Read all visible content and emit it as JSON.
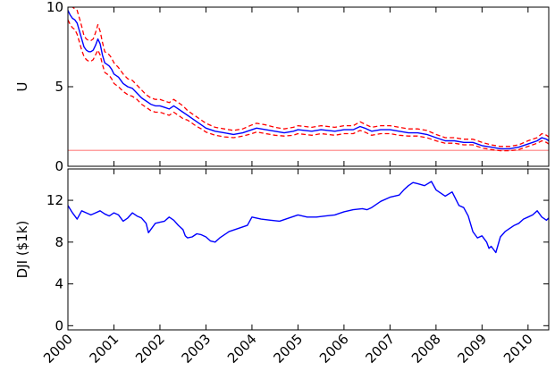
{
  "chart_data": [
    {
      "type": "line",
      "ylabel": "U",
      "ylim": [
        0,
        10
      ],
      "yticks": [
        "0",
        "5",
        "10"
      ],
      "xlim": [
        2000.0,
        2010.45
      ],
      "grid": false,
      "reference_line": {
        "y": 1.0,
        "color": "#ff8080"
      },
      "colors": {
        "estimate": "#0000ff",
        "band": "#ff0000"
      },
      "series": [
        {
          "role": "estimate",
          "style": "solid",
          "x": [
            2000.0,
            2000.05,
            2000.1,
            2000.15,
            2000.2,
            2000.25,
            2000.3,
            2000.35,
            2000.4,
            2000.45,
            2000.5,
            2000.55,
            2000.6,
            2000.65,
            2000.7,
            2000.75,
            2000.8,
            2000.85,
            2000.9,
            2000.95,
            2001.0,
            2001.1,
            2001.2,
            2001.3,
            2001.4,
            2001.5,
            2001.6,
            2001.7,
            2001.8,
            2001.9,
            2002.0,
            2002.1,
            2002.2,
            2002.3,
            2002.4,
            2002.5,
            2002.6,
            2002.7,
            2002.8,
            2002.9,
            2003.0,
            2003.2,
            2003.4,
            2003.6,
            2003.8,
            2004.0,
            2004.1,
            2004.3,
            2004.5,
            2004.7,
            2004.9,
            2005.0,
            2005.3,
            2005.5,
            2005.8,
            2006.0,
            2006.2,
            2006.35,
            2006.45,
            2006.6,
            2006.8,
            2007.0,
            2007.2,
            2007.4,
            2007.6,
            2007.8,
            2008.0,
            2008.2,
            2008.4,
            2008.6,
            2008.8,
            2009.0,
            2009.2,
            2009.4,
            2009.6,
            2009.8,
            2010.0,
            2010.1,
            2010.2,
            2010.3,
            2010.4,
            2010.45
          ],
          "y": [
            9.8,
            9.5,
            9.3,
            9.2,
            9.0,
            8.5,
            8.0,
            7.5,
            7.3,
            7.2,
            7.2,
            7.3,
            7.6,
            8.0,
            7.7,
            7.0,
            6.5,
            6.4,
            6.3,
            6.1,
            5.8,
            5.6,
            5.2,
            5.0,
            4.9,
            4.6,
            4.3,
            4.1,
            3.9,
            3.8,
            3.8,
            3.7,
            3.6,
            3.8,
            3.6,
            3.4,
            3.2,
            3.0,
            2.8,
            2.6,
            2.4,
            2.2,
            2.1,
            2.0,
            2.1,
            2.3,
            2.4,
            2.3,
            2.2,
            2.1,
            2.2,
            2.3,
            2.2,
            2.3,
            2.2,
            2.3,
            2.3,
            2.5,
            2.4,
            2.2,
            2.3,
            2.3,
            2.2,
            2.1,
            2.1,
            2.0,
            1.8,
            1.6,
            1.6,
            1.5,
            1.5,
            1.3,
            1.2,
            1.1,
            1.1,
            1.2,
            1.4,
            1.5,
            1.6,
            1.8,
            1.7,
            1.6
          ]
        },
        {
          "role": "upper band",
          "style": "dashed",
          "x": [
            2000.0,
            2000.05,
            2000.1,
            2000.15,
            2000.2,
            2000.25,
            2000.3,
            2000.35,
            2000.4,
            2000.45,
            2000.5,
            2000.55,
            2000.6,
            2000.65,
            2000.7,
            2000.75,
            2000.8,
            2000.85,
            2000.9,
            2000.95,
            2001.0,
            2001.1,
            2001.2,
            2001.3,
            2001.4,
            2001.5,
            2001.6,
            2001.7,
            2001.8,
            2001.9,
            2002.0,
            2002.1,
            2002.2,
            2002.3,
            2002.4,
            2002.5,
            2002.6,
            2002.7,
            2002.8,
            2002.9,
            2003.0,
            2003.2,
            2003.4,
            2003.6,
            2003.8,
            2004.0,
            2004.1,
            2004.3,
            2004.5,
            2004.7,
            2004.9,
            2005.0,
            2005.3,
            2005.5,
            2005.8,
            2006.0,
            2006.2,
            2006.35,
            2006.45,
            2006.6,
            2006.8,
            2007.0,
            2007.2,
            2007.4,
            2007.6,
            2007.8,
            2008.0,
            2008.2,
            2008.4,
            2008.6,
            2008.8,
            2009.0,
            2009.2,
            2009.4,
            2009.6,
            2009.8,
            2010.0,
            2010.1,
            2010.2,
            2010.3,
            2010.4,
            2010.45
          ],
          "y": [
            10.5,
            10.3,
            10.0,
            9.9,
            9.8,
            9.3,
            8.8,
            8.2,
            8.0,
            7.9,
            7.9,
            8.0,
            8.4,
            8.9,
            8.5,
            7.8,
            7.2,
            7.1,
            7.0,
            6.8,
            6.5,
            6.2,
            5.8,
            5.5,
            5.4,
            5.1,
            4.8,
            4.5,
            4.3,
            4.2,
            4.2,
            4.1,
            4.0,
            4.2,
            4.0,
            3.8,
            3.5,
            3.3,
            3.1,
            2.9,
            2.7,
            2.45,
            2.35,
            2.25,
            2.35,
            2.6,
            2.7,
            2.6,
            2.45,
            2.35,
            2.45,
            2.55,
            2.45,
            2.55,
            2.45,
            2.55,
            2.55,
            2.8,
            2.65,
            2.45,
            2.55,
            2.55,
            2.45,
            2.35,
            2.35,
            2.25,
            2.0,
            1.8,
            1.8,
            1.7,
            1.7,
            1.5,
            1.35,
            1.25,
            1.25,
            1.35,
            1.6,
            1.7,
            1.8,
            2.05,
            1.95,
            1.85
          ]
        },
        {
          "role": "lower band",
          "style": "dashed",
          "x": [
            2000.0,
            2000.05,
            2000.1,
            2000.15,
            2000.2,
            2000.25,
            2000.3,
            2000.35,
            2000.4,
            2000.45,
            2000.5,
            2000.55,
            2000.6,
            2000.65,
            2000.7,
            2000.75,
            2000.8,
            2000.85,
            2000.9,
            2000.95,
            2001.0,
            2001.1,
            2001.2,
            2001.3,
            2001.4,
            2001.5,
            2001.6,
            2001.7,
            2001.8,
            2001.9,
            2002.0,
            2002.1,
            2002.2,
            2002.3,
            2002.4,
            2002.5,
            2002.6,
            2002.7,
            2002.8,
            2002.9,
            2003.0,
            2003.2,
            2003.4,
            2003.6,
            2003.8,
            2004.0,
            2004.1,
            2004.3,
            2004.5,
            2004.7,
            2004.9,
            2005.0,
            2005.3,
            2005.5,
            2005.8,
            2006.0,
            2006.2,
            2006.35,
            2006.45,
            2006.6,
            2006.8,
            2007.0,
            2007.2,
            2007.4,
            2007.6,
            2007.8,
            2008.0,
            2008.2,
            2008.4,
            2008.6,
            2008.8,
            2009.0,
            2009.2,
            2009.4,
            2009.6,
            2009.8,
            2010.0,
            2010.1,
            2010.2,
            2010.3,
            2010.4,
            2010.45
          ],
          "y": [
            9.2,
            8.9,
            8.7,
            8.6,
            8.3,
            7.8,
            7.3,
            6.9,
            6.7,
            6.6,
            6.6,
            6.7,
            7.0,
            7.3,
            7.0,
            6.4,
            5.9,
            5.8,
            5.7,
            5.5,
            5.2,
            5.0,
            4.7,
            4.5,
            4.4,
            4.2,
            3.9,
            3.7,
            3.5,
            3.4,
            3.4,
            3.3,
            3.2,
            3.4,
            3.2,
            3.0,
            2.9,
            2.7,
            2.5,
            2.35,
            2.15,
            1.95,
            1.85,
            1.8,
            1.9,
            2.05,
            2.15,
            2.05,
            1.95,
            1.9,
            1.95,
            2.05,
            1.95,
            2.05,
            1.95,
            2.05,
            2.05,
            2.25,
            2.15,
            1.95,
            2.05,
            2.05,
            1.95,
            1.9,
            1.9,
            1.8,
            1.6,
            1.45,
            1.45,
            1.35,
            1.35,
            1.15,
            1.05,
            0.98,
            0.98,
            1.05,
            1.25,
            1.35,
            1.45,
            1.6,
            1.5,
            1.4
          ]
        }
      ]
    },
    {
      "type": "line",
      "ylabel": "DJI ($1k)",
      "ylim": [
        -0.4,
        15.0
      ],
      "yticks": [
        "0",
        "4",
        "8",
        "12"
      ],
      "xlim": [
        2000.0,
        2010.45
      ],
      "xticks": [
        "2000",
        "2001",
        "2002",
        "2003",
        "2004",
        "2005",
        "2006",
        "2007",
        "2008",
        "2009",
        "2010"
      ],
      "grid": false,
      "colors": {
        "line": "#0000ff"
      },
      "series": [
        {
          "role": "DJI",
          "x": [
            2000.0,
            2000.1,
            2000.2,
            2000.3,
            2000.4,
            2000.5,
            2000.6,
            2000.7,
            2000.8,
            2000.9,
            2001.0,
            2001.1,
            2001.2,
            2001.3,
            2001.4,
            2001.5,
            2001.6,
            2001.7,
            2001.75,
            2001.8,
            2001.9,
            2002.0,
            2002.1,
            2002.2,
            2002.3,
            2002.4,
            2002.5,
            2002.55,
            2002.6,
            2002.7,
            2002.8,
            2002.9,
            2003.0,
            2003.1,
            2003.2,
            2003.3,
            2003.5,
            2003.7,
            2003.9,
            2004.0,
            2004.2,
            2004.4,
            2004.6,
            2004.8,
            2005.0,
            2005.2,
            2005.4,
            2005.6,
            2005.8,
            2006.0,
            2006.2,
            2006.4,
            2006.5,
            2006.6,
            2006.8,
            2007.0,
            2007.2,
            2007.3,
            2007.4,
            2007.5,
            2007.6,
            2007.75,
            2007.9,
            2008.0,
            2008.2,
            2008.35,
            2008.5,
            2008.6,
            2008.7,
            2008.8,
            2008.9,
            2009.0,
            2009.1,
            2009.15,
            2009.2,
            2009.3,
            2009.4,
            2009.5,
            2009.6,
            2009.7,
            2009.8,
            2009.9,
            2010.0,
            2010.1,
            2010.2,
            2010.3,
            2010.4,
            2010.45
          ],
          "y": [
            11.5,
            10.8,
            10.2,
            11.0,
            10.8,
            10.6,
            10.8,
            11.0,
            10.7,
            10.5,
            10.8,
            10.6,
            10.0,
            10.3,
            10.8,
            10.5,
            10.3,
            9.8,
            8.9,
            9.2,
            9.8,
            9.9,
            10.0,
            10.4,
            10.1,
            9.6,
            9.2,
            8.6,
            8.4,
            8.5,
            8.8,
            8.7,
            8.5,
            8.1,
            8.0,
            8.4,
            9.0,
            9.3,
            9.6,
            10.4,
            10.2,
            10.1,
            10.0,
            10.3,
            10.6,
            10.4,
            10.4,
            10.5,
            10.6,
            10.9,
            11.1,
            11.2,
            11.1,
            11.3,
            11.9,
            12.3,
            12.5,
            13.0,
            13.4,
            13.7,
            13.6,
            13.4,
            13.8,
            13.0,
            12.4,
            12.8,
            11.5,
            11.3,
            10.5,
            9.0,
            8.4,
            8.6,
            8.0,
            7.4,
            7.6,
            7.0,
            8.5,
            9.0,
            9.3,
            9.6,
            9.8,
            10.2,
            10.4,
            10.6,
            11.0,
            10.4,
            10.1,
            10.3
          ]
        }
      ]
    }
  ]
}
